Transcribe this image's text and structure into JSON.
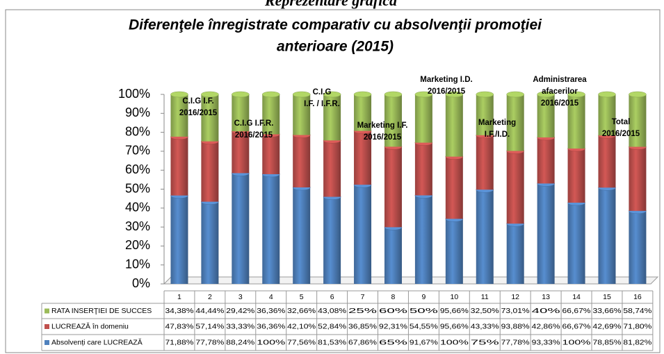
{
  "chart_data": {
    "type": "bar",
    "stacking": "percent",
    "header": "Reprezentare grafică",
    "title": [
      "Diferenţele înregistrate comparativ cu absolvenţii promoţiei",
      "anterioare (2015)"
    ],
    "categories": [
      "1",
      "2",
      "3",
      "4",
      "5",
      "6",
      "7",
      "8",
      "9",
      "10",
      "11",
      "12",
      "13",
      "14",
      "15",
      "16"
    ],
    "series": [
      {
        "name": "Absolvenți care LUCREAZĂ",
        "color": "#4f81bd",
        "values": [
          71.88,
          77.78,
          88.24,
          100,
          77.56,
          81.53,
          67.86,
          65,
          91.67,
          100,
          75,
          77.78,
          93.33,
          100,
          78.85,
          81.82
        ],
        "value_labels": [
          "71,88%",
          "77,78%",
          "88,24%",
          "100%",
          "77,56%",
          "81,53%",
          "67,86%",
          "65%",
          "91,67%",
          "100%",
          "75%",
          "77,78%",
          "93,33%",
          "100%",
          "78,85%",
          "81,82%"
        ]
      },
      {
        "name": "LUCREAZĂ în domeniu",
        "color": "#c0504d",
        "values": [
          47.83,
          57.14,
          33.33,
          36.36,
          42.1,
          52.84,
          36.85,
          92.31,
          54.55,
          95.66,
          43.33,
          93.88,
          42.86,
          66.67,
          42.69,
          71.8
        ],
        "value_labels": [
          "47,83%",
          "57,14%",
          "33,33%",
          "36,36%",
          "42,10%",
          "52,84%",
          "36,85%",
          "92,31%",
          "54,55%",
          "95,66%",
          "43,33%",
          "93,88%",
          "42,86%",
          "66,67%",
          "42,69%",
          "71,80%"
        ]
      },
      {
        "name": "RATA INSERŢIEI  DE  SUCCES",
        "color": "#9bbb59",
        "values": [
          34.38,
          44.44,
          29.42,
          36.36,
          32.66,
          43.08,
          25,
          60,
          50,
          95.66,
          32.5,
          73.01,
          40,
          66.67,
          33.66,
          58.74
        ],
        "value_labels": [
          "34,38%",
          "44,44%",
          "29,42%",
          "36,36%",
          "32,66%",
          "43,08%",
          "25%",
          "60%",
          "50%",
          "95,66%",
          "32,50%",
          "73,01%",
          "40%",
          "66,67%",
          "33,66%",
          "58,74%"
        ]
      }
    ],
    "ylim": [
      0,
      100
    ],
    "yticks": [
      {
        "value": 0,
        "label": "0%"
      },
      {
        "value": 10,
        "label": "10%"
      },
      {
        "value": 20,
        "label": "20%"
      },
      {
        "value": 30,
        "label": "30%"
      },
      {
        "value": 40,
        "label": "40%"
      },
      {
        "value": 50,
        "label": "50%"
      },
      {
        "value": 60,
        "label": "60%"
      },
      {
        "value": 70,
        "label": "70%"
      },
      {
        "value": 80,
        "label": "80%"
      },
      {
        "value": 90,
        "label": "90%"
      },
      {
        "value": 100,
        "label": "100%"
      }
    ],
    "grid": false,
    "annotations": [
      [
        "C.I.G  I.F.",
        "2016/2015"
      ],
      [
        "C.I.G  I.F.R.",
        "2016/2015"
      ],
      [
        "C.I.G",
        "I.F. / I.F.R."
      ],
      [
        "Marketing I.F.",
        "2016/2015"
      ],
      [
        "Marketing I.D.",
        "2016/2015"
      ],
      [
        "Marketing",
        "I.F./I.D."
      ],
      [
        "Administrarea",
        "afacerilor",
        "2016/2015"
      ],
      [
        "Total",
        "2016/2015"
      ]
    ]
  }
}
